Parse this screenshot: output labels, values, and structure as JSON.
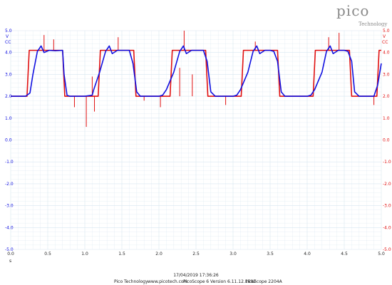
{
  "logo": {
    "main": "pico",
    "sub": "Technology"
  },
  "colors": {
    "channel_a": "#1010e0",
    "channel_b": "#e01010",
    "grid": "#d8e6f0",
    "text": "#222222"
  },
  "footer": {
    "timestamp": "17/04/2019 17:36:26",
    "company": "Pico Technology",
    "website": "www.picotech.com",
    "software": "PicoScope 6 Version 6.11.12.1692",
    "device": "PicoScope 2204A"
  },
  "chart_data": {
    "type": "line",
    "title": "",
    "xlabel": "s",
    "x_ticks": [
      "0.0",
      "0.5",
      "1.0",
      "1.5",
      "2.0",
      "2.5",
      "3.0",
      "3.5",
      "4.0",
      "4.5",
      "5.0"
    ],
    "y_ticks": [
      "5.0",
      "4.0",
      "3.0",
      "2.0",
      "1.0",
      "0.0",
      "-1.0",
      "-2.0",
      "-3.0",
      "-4.0",
      "-5.0"
    ],
    "xlim": [
      0,
      5
    ],
    "ylim": [
      -5,
      5
    ],
    "grid": true,
    "left_axis": {
      "unit": "V",
      "coupling": "CC"
    },
    "right_axis": {
      "unit": "V",
      "coupling": "CC"
    },
    "series": [
      {
        "channel": "A",
        "color": "#1010e0",
        "x": [
          0,
          0.2,
          0.26,
          0.3,
          0.36,
          0.41,
          0.45,
          0.52,
          0.6,
          0.7,
          0.72,
          0.76,
          0.8,
          1.0,
          1.1,
          1.12,
          1.2,
          1.28,
          1.33,
          1.37,
          1.44,
          1.52,
          1.6,
          1.65,
          1.7,
          1.75,
          1.8,
          2.0,
          2.05,
          2.1,
          2.2,
          2.28,
          2.33,
          2.37,
          2.44,
          2.52,
          2.6,
          2.65,
          2.7,
          2.76,
          2.8,
          3.0,
          3.05,
          3.1,
          3.2,
          3.27,
          3.32,
          3.36,
          3.43,
          3.5,
          3.55,
          3.6,
          3.65,
          3.7,
          3.75,
          3.8,
          4.0,
          4.05,
          4.1,
          4.2,
          4.26,
          4.31,
          4.35,
          4.42,
          4.5,
          4.55,
          4.6,
          4.64,
          4.7,
          4.75,
          4.9,
          4.95,
          5.0
        ],
        "y": [
          2.0,
          2.0,
          2.15,
          3.0,
          4.05,
          4.3,
          4.0,
          4.1,
          4.08,
          4.1,
          3.0,
          2.05,
          2.0,
          2.0,
          2.05,
          2.3,
          3.1,
          4.05,
          4.3,
          3.95,
          4.1,
          4.1,
          4.1,
          3.5,
          2.2,
          2.0,
          2.0,
          2.0,
          2.05,
          2.3,
          3.1,
          4.05,
          4.3,
          3.95,
          4.1,
          4.1,
          4.1,
          3.6,
          2.2,
          2.0,
          2.0,
          2.0,
          2.05,
          2.3,
          3.1,
          4.05,
          4.3,
          3.95,
          4.1,
          4.1,
          4.05,
          3.6,
          2.2,
          2.0,
          2.0,
          2.0,
          2.0,
          2.05,
          2.3,
          3.1,
          4.05,
          4.3,
          3.95,
          4.1,
          4.1,
          4.05,
          3.6,
          2.2,
          2.0,
          2.0,
          2.0,
          2.5,
          3.5
        ]
      },
      {
        "channel": "B",
        "color": "#e01010",
        "x": [
          0,
          0.22,
          0.25,
          0.7,
          0.73,
          1.18,
          1.21,
          1.66,
          1.69,
          2.15,
          2.18,
          2.63,
          2.66,
          3.11,
          3.14,
          3.6,
          3.63,
          4.08,
          4.11,
          4.57,
          4.6,
          4.94,
          4.97,
          5.0
        ],
        "y": [
          2.0,
          2.0,
          4.1,
          4.1,
          2.0,
          2.0,
          4.1,
          4.1,
          2.0,
          2.0,
          4.1,
          4.1,
          2.0,
          2.0,
          4.1,
          4.1,
          2.0,
          2.0,
          4.1,
          4.1,
          2.0,
          2.0,
          4.1,
          4.1
        ]
      }
    ],
    "spikes": [
      {
        "channel": "B",
        "x": 0.45,
        "y": 4.8
      },
      {
        "channel": "B",
        "x": 0.58,
        "y": 4.6
      },
      {
        "channel": "B",
        "x": 0.86,
        "y": 1.5
      },
      {
        "channel": "B",
        "x": 1.02,
        "y": 0.6
      },
      {
        "channel": "B",
        "x": 1.1,
        "y": 2.9
      },
      {
        "channel": "B",
        "x": 1.13,
        "y": 1.3
      },
      {
        "channel": "B",
        "x": 1.45,
        "y": 4.7
      },
      {
        "channel": "B",
        "x": 1.8,
        "y": 1.8
      },
      {
        "channel": "B",
        "x": 2.02,
        "y": 1.5
      },
      {
        "channel": "B",
        "x": 2.28,
        "y": 3.3
      },
      {
        "channel": "B",
        "x": 2.34,
        "y": 5.0
      },
      {
        "channel": "B",
        "x": 2.45,
        "y": 3.0
      },
      {
        "channel": "B",
        "x": 2.9,
        "y": 1.6
      },
      {
        "channel": "B",
        "x": 3.3,
        "y": 4.5
      },
      {
        "channel": "B",
        "x": 4.29,
        "y": 4.7
      },
      {
        "channel": "B",
        "x": 4.43,
        "y": 4.9
      },
      {
        "channel": "B",
        "x": 4.9,
        "y": 1.6
      }
    ]
  }
}
